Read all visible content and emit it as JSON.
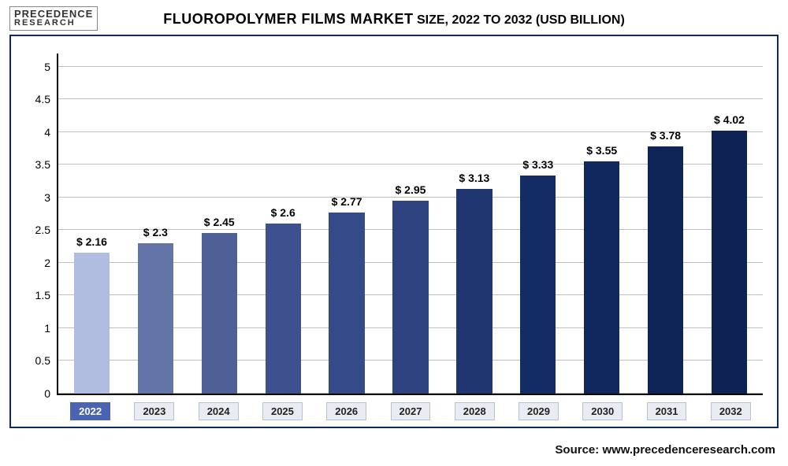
{
  "logo": {
    "line1": "PRECEDENCE",
    "line2": "RESEARCH"
  },
  "chart": {
    "type": "bar",
    "title_prefix": "FLUOROPOLYMER FILMS MARKET",
    "title_span": " SIZE, 2022 TO 2032 (USD BILLION)",
    "title_fontsize": 18,
    "ylim": [
      0,
      5.2
    ],
    "ytick_step": 0.5,
    "yticks": [
      0,
      0.5,
      1,
      1.5,
      2,
      2.5,
      3,
      3.5,
      4,
      4.5,
      5
    ],
    "grid_color": "#bfbfbf",
    "background_color": "#ffffff",
    "border_color": "#0d2b5c",
    "categories": [
      "2022",
      "2023",
      "2024",
      "2025",
      "2026",
      "2027",
      "2028",
      "2029",
      "2030",
      "2031",
      "2032"
    ],
    "values": [
      2.16,
      2.3,
      2.45,
      2.6,
      2.77,
      2.95,
      3.13,
      3.33,
      3.55,
      3.78,
      4.02
    ],
    "value_labels": [
      "$ 2.16",
      "$ 2.3",
      "$ 2.45",
      "$ 2.6",
      "$ 2.77",
      "$ 2.95",
      "$ 3.13",
      "$ 3.33",
      "$ 3.55",
      "$ 3.78",
      "$ 4.02"
    ],
    "bar_colors": [
      "#b1bde0",
      "#6274a8",
      "#4f6096",
      "#3e508d",
      "#354a88",
      "#2e437f",
      "#1f3671",
      "#142c66",
      "#11285f",
      "#0f2456",
      "#0d2250"
    ],
    "bar_width_pct": 56,
    "label_bg": "#e9ecf3",
    "label_bg_first": "#4a63b3",
    "label_fontsize": 13,
    "value_label_fontsize": 14
  },
  "source": {
    "prefix": "Source: ",
    "url": "www.precedenceresearch.com"
  }
}
